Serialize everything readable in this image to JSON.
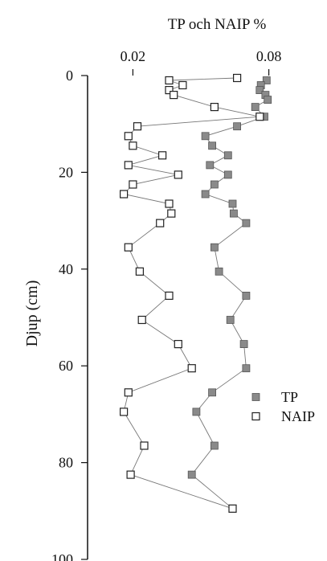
{
  "chart_data": {
    "type": "scatter",
    "title": "TP och NAIP %",
    "ylabel": "Djup (cm)",
    "xlabel": "",
    "x_ticks": [
      0.02,
      0.08
    ],
    "y_ticks": [
      0,
      20,
      40,
      60,
      80,
      100
    ],
    "xlim": [
      0.0,
      0.1
    ],
    "ylim": [
      0,
      100
    ],
    "y_inverted": true,
    "x_axis_position": "top",
    "legend_position": "bottom-right",
    "series": [
      {
        "name": "TP",
        "marker": "filled-square",
        "color": "#8a8a8a",
        "points": [
          {
            "x": 0.079,
            "y": 1
          },
          {
            "x": 0.0765,
            "y": 2
          },
          {
            "x": 0.076,
            "y": 3
          },
          {
            "x": 0.0785,
            "y": 4
          },
          {
            "x": 0.0795,
            "y": 5
          },
          {
            "x": 0.074,
            "y": 6.5
          },
          {
            "x": 0.078,
            "y": 8.5
          },
          {
            "x": 0.066,
            "y": 10.5
          },
          {
            "x": 0.052,
            "y": 12.5
          },
          {
            "x": 0.055,
            "y": 14.5
          },
          {
            "x": 0.062,
            "y": 16.5
          },
          {
            "x": 0.054,
            "y": 18.5
          },
          {
            "x": 0.062,
            "y": 20.5
          },
          {
            "x": 0.056,
            "y": 22.5
          },
          {
            "x": 0.052,
            "y": 24.5
          },
          {
            "x": 0.064,
            "y": 26.5
          },
          {
            "x": 0.0645,
            "y": 28.5
          },
          {
            "x": 0.07,
            "y": 30.5
          },
          {
            "x": 0.056,
            "y": 35.5
          },
          {
            "x": 0.058,
            "y": 40.5
          },
          {
            "x": 0.07,
            "y": 45.5
          },
          {
            "x": 0.063,
            "y": 50.5
          },
          {
            "x": 0.069,
            "y": 55.5
          },
          {
            "x": 0.07,
            "y": 60.5
          },
          {
            "x": 0.055,
            "y": 65.5
          },
          {
            "x": 0.048,
            "y": 69.5
          },
          {
            "x": 0.056,
            "y": 76.5
          },
          {
            "x": 0.046,
            "y": 82.5
          },
          {
            "x": 0.064,
            "y": 89.5
          }
        ]
      },
      {
        "name": "NAIP",
        "marker": "open-square",
        "color": "#222222",
        "points": [
          {
            "x": 0.066,
            "y": 0.5
          },
          {
            "x": 0.036,
            "y": 1
          },
          {
            "x": 0.042,
            "y": 2
          },
          {
            "x": 0.036,
            "y": 3
          },
          {
            "x": 0.038,
            "y": 4
          },
          {
            "x": 0.056,
            "y": 6.5
          },
          {
            "x": 0.076,
            "y": 8.5
          },
          {
            "x": 0.022,
            "y": 10.5
          },
          {
            "x": 0.018,
            "y": 12.5
          },
          {
            "x": 0.02,
            "y": 14.5
          },
          {
            "x": 0.033,
            "y": 16.5
          },
          {
            "x": 0.018,
            "y": 18.5
          },
          {
            "x": 0.04,
            "y": 20.5
          },
          {
            "x": 0.02,
            "y": 22.5
          },
          {
            "x": 0.016,
            "y": 24.5
          },
          {
            "x": 0.036,
            "y": 26.5
          },
          {
            "x": 0.037,
            "y": 28.5
          },
          {
            "x": 0.032,
            "y": 30.5
          },
          {
            "x": 0.018,
            "y": 35.5
          },
          {
            "x": 0.023,
            "y": 40.5
          },
          {
            "x": 0.036,
            "y": 45.5
          },
          {
            "x": 0.024,
            "y": 50.5
          },
          {
            "x": 0.04,
            "y": 55.5
          },
          {
            "x": 0.046,
            "y": 60.5
          },
          {
            "x": 0.018,
            "y": 65.5
          },
          {
            "x": 0.016,
            "y": 69.5
          },
          {
            "x": 0.025,
            "y": 76.5
          },
          {
            "x": 0.019,
            "y": 82.5
          },
          {
            "x": 0.064,
            "y": 89.5
          }
        ]
      }
    ]
  }
}
